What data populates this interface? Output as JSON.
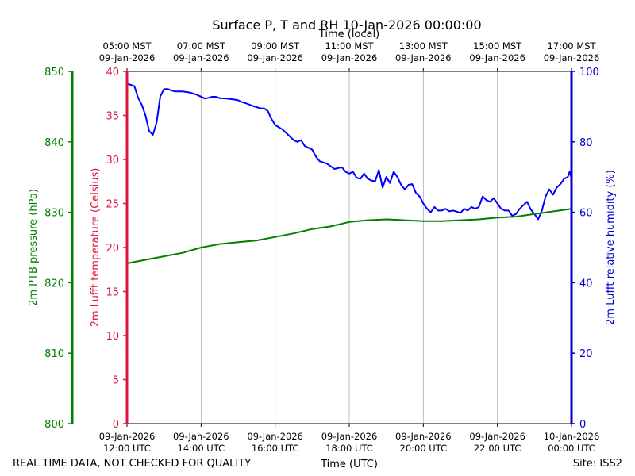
{
  "chart_data": {
    "type": "line",
    "title": "Surface P, T and RH 10-Jan-2026 00:00:00",
    "top_axis_label": "Time (local)",
    "bottom_axis_label": "Time (UTC)",
    "footer_left": "REAL TIME DATA, NOT CHECKED FOR QUALITY",
    "footer_right": "Site: ISS2",
    "x_ticks_utc": [
      {
        "date": "09-Jan-2026",
        "time": "12:00 UTC"
      },
      {
        "date": "09-Jan-2026",
        "time": "14:00 UTC"
      },
      {
        "date": "09-Jan-2026",
        "time": "16:00 UTC"
      },
      {
        "date": "09-Jan-2026",
        "time": "18:00 UTC"
      },
      {
        "date": "09-Jan-2026",
        "time": "20:00 UTC"
      },
      {
        "date": "09-Jan-2026",
        "time": "22:00 UTC"
      },
      {
        "date": "10-Jan-2026",
        "time": "00:00 UTC"
      }
    ],
    "x_ticks_local": [
      {
        "time": "05:00 MST",
        "date": "09-Jan-2026"
      },
      {
        "time": "07:00 MST",
        "date": "09-Jan-2026"
      },
      {
        "time": "09:00 MST",
        "date": "09-Jan-2026"
      },
      {
        "time": "11:00 MST",
        "date": "09-Jan-2026"
      },
      {
        "time": "13:00 MST",
        "date": "09-Jan-2026"
      },
      {
        "time": "15:00 MST",
        "date": "09-Jan-2026"
      },
      {
        "time": "17:00 MST",
        "date": "09-Jan-2026"
      }
    ],
    "xlim_hours_utc": [
      12,
      24
    ],
    "grid_vertical": true,
    "axes": {
      "pressure": {
        "label": "2m PTB pressure (hPa)",
        "ylim": [
          800,
          850
        ],
        "ticks": [
          800,
          810,
          820,
          830,
          840,
          850
        ],
        "color": "#008000"
      },
      "temperature": {
        "label": "2m Lufft temperature (Celsius)",
        "ylim": [
          0,
          40
        ],
        "ticks": [
          0,
          5,
          10,
          15,
          20,
          25,
          30,
          35,
          40
        ],
        "color": "#dc143c"
      },
      "humidity": {
        "label": "2m Lufft relative humidity (%)",
        "ylim": [
          0,
          100
        ],
        "ticks": [
          0,
          20,
          40,
          60,
          80,
          100
        ],
        "color": "#0000cd"
      }
    },
    "series": [
      {
        "axis": "humidity",
        "color": "#0000ff",
        "x": [
          12.0,
          12.1,
          12.2,
          12.3,
          12.4,
          12.5,
          12.6,
          12.7,
          12.8,
          12.9,
          13.0,
          13.1,
          13.2,
          13.3,
          13.5,
          13.7,
          13.9,
          14.1,
          14.2,
          14.3,
          14.4,
          14.5,
          14.7,
          14.9,
          15.0,
          15.1,
          15.2,
          15.4,
          15.6,
          15.7,
          15.8,
          15.9,
          16.0,
          16.2,
          16.4,
          16.5,
          16.6,
          16.7,
          16.8,
          16.9,
          17.0,
          17.1,
          17.2,
          17.4,
          17.6,
          17.8,
          17.9,
          18.0,
          18.1,
          18.2,
          18.3,
          18.4,
          18.5,
          18.6,
          18.7,
          18.8,
          18.9,
          19.0,
          19.1,
          19.2,
          19.3,
          19.4,
          19.5,
          19.6,
          19.7,
          19.8,
          19.9,
          20.0,
          20.1,
          20.2,
          20.3,
          20.4,
          20.5,
          20.6,
          20.7,
          20.8,
          20.9,
          21.0,
          21.1,
          21.2,
          21.3,
          21.4,
          21.5,
          21.6,
          21.7,
          21.8,
          21.9,
          22.0,
          22.1,
          22.2,
          22.3,
          22.4,
          22.5,
          22.6,
          22.7,
          22.8,
          22.9,
          23.0,
          23.1,
          23.2,
          23.3,
          23.4,
          23.5,
          23.6,
          23.7,
          23.8,
          23.9,
          23.95,
          24.0
        ],
        "values": [
          96.5,
          96.2,
          95.8,
          92.5,
          90.5,
          87.5,
          83.0,
          82.0,
          85.5,
          93.0,
          95.0,
          95.0,
          94.6,
          94.3,
          94.3,
          94.0,
          93.3,
          92.3,
          92.5,
          92.8,
          92.8,
          92.4,
          92.3,
          92.0,
          91.8,
          91.3,
          91.0,
          90.2,
          89.5,
          89.5,
          88.8,
          86.5,
          84.8,
          83.5,
          81.5,
          80.5,
          80.0,
          80.5,
          78.8,
          78.3,
          77.8,
          75.8,
          74.5,
          73.8,
          72.3,
          72.8,
          71.5,
          71.0,
          71.5,
          69.8,
          69.5,
          71.0,
          69.5,
          69.0,
          68.8,
          72.0,
          67.0,
          70.0,
          68.3,
          71.5,
          70.0,
          67.8,
          66.5,
          67.8,
          68.0,
          65.5,
          64.5,
          62.5,
          61.0,
          60.0,
          61.5,
          60.5,
          60.5,
          61.0,
          60.3,
          60.5,
          60.2,
          59.8,
          61.0,
          60.5,
          61.5,
          61.0,
          61.5,
          64.5,
          63.5,
          63.0,
          64.0,
          62.5,
          61.0,
          60.5,
          60.5,
          59.0,
          59.5,
          61.0,
          62.0,
          63.0,
          60.8,
          59.5,
          58.0,
          60.5,
          64.5,
          66.5,
          65.0,
          67.0,
          68.0,
          69.5,
          70.0,
          71.5,
          69.5
        ]
      },
      {
        "axis": "temperature",
        "color": "#008000",
        "x": [
          12.0,
          12.5,
          13.0,
          13.5,
          14.0,
          14.5,
          15.0,
          15.5,
          16.0,
          16.5,
          17.0,
          17.5,
          18.0,
          18.5,
          19.0,
          19.5,
          20.0,
          20.5,
          21.0,
          21.5,
          22.0,
          22.5,
          23.0,
          23.5,
          24.0
        ],
        "values": [
          18.2,
          18.6,
          19.0,
          19.4,
          20.0,
          20.4,
          20.6,
          20.8,
          21.2,
          21.6,
          22.1,
          22.4,
          22.9,
          23.1,
          23.2,
          23.1,
          23.0,
          23.0,
          23.1,
          23.2,
          23.4,
          23.5,
          23.8,
          24.1,
          24.4
        ]
      }
    ]
  }
}
